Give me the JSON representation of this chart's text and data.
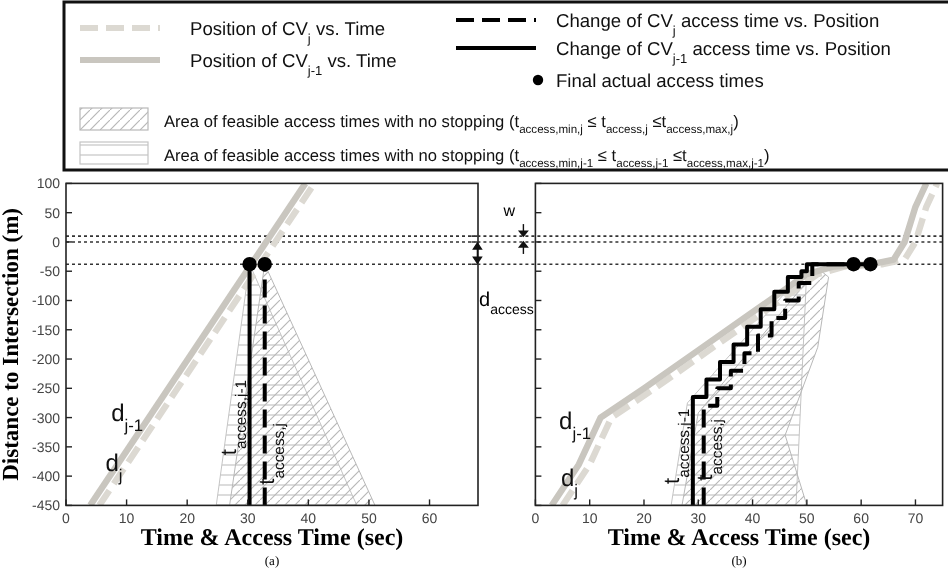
{
  "chart_data": [
    {
      "type": "line",
      "xlabel": "Time & Access Time (sec)",
      "ylabel": "Distance to Intersection (m)",
      "xlim": [
        0,
        68
      ],
      "xticks": [
        0,
        10,
        20,
        30,
        40,
        50,
        60
      ],
      "ylim": [
        -450,
        100
      ],
      "yticks": [
        100,
        50,
        0,
        -50,
        -100,
        -150,
        -200,
        -250,
        -300,
        -350,
        -400,
        -450
      ],
      "legend": "top",
      "ref_lines": [
        {
          "axis": "y",
          "value": 10,
          "line_style": "dotted"
        },
        {
          "axis": "y",
          "value": 0,
          "line_style": "dotted"
        },
        {
          "axis": "y",
          "value": -38,
          "line_style": "dotted"
        }
      ],
      "series": [
        {
          "name": "Position of CV$_{j}$ vs. Time",
          "color": "#dcd9d2",
          "line_style": "dashed",
          "x": [
            5.5,
            41
          ],
          "values": [
            -450,
            100
          ]
        },
        {
          "name": "Position of CV$_{j-1}$ vs. Time",
          "color": "#c9c6bf",
          "line_style": "solid",
          "x": [
            4,
            39.5
          ],
          "values": [
            -450,
            100
          ]
        },
        {
          "name": "Change of CV$_{j}$ access time vs. Position",
          "color": "#000000",
          "line_style": "dashed",
          "x": [
            32.8,
            32.8
          ],
          "values": [
            -450,
            -38
          ]
        },
        {
          "name": "Change of CV$_{j-1}$ access time vs. Position",
          "color": "#000000",
          "line_style": "solid",
          "x": [
            30.3,
            30.3
          ],
          "values": [
            -450,
            -38
          ]
        },
        {
          "name": "Final actual access times",
          "type": "scatter",
          "marker": "circle",
          "color": "#000000",
          "x": [
            30.3,
            32.8
          ],
          "values": [
            -38,
            -38
          ]
        },
        {
          "name": "Area of feasible access times with no stopping (t$_{access,min,j}$ ≤ t$_{access,j}$ ≤t$_{access,max,j}$)",
          "type": "area",
          "color": "#b8b8b8",
          "x": [
            27,
            32.8,
            51
          ],
          "values": [
            -450,
            -38,
            -450
          ]
        },
        {
          "name": "Area of feasible access times with no stopping (t$_{access,min,j-1}$ ≤ t$_{access,j-1}$ ≤t$_{access,max,j-1}$)",
          "type": "area",
          "color": "#c4c4c4",
          "x": [
            24.8,
            30.3,
            48
          ],
          "values": [
            -450,
            -38,
            -450
          ]
        }
      ],
      "annotations": [
        {
          "text": "d$_{j-1}$",
          "x": 13.4,
          "y": -305
        },
        {
          "text": "d$_{j}$",
          "x": 10,
          "y": -392
        },
        {
          "text": "t$_{access,j-1}$",
          "x": 28.1,
          "y": -300
        },
        {
          "text": "t$_{access,j}$",
          "x": 34.4,
          "y": -362
        },
        "(a)"
      ]
    },
    {
      "type": "line",
      "xlabel": "Time & Access Time (sec)",
      "xlim": [
        0,
        75
      ],
      "xticks": [
        0,
        10,
        20,
        30,
        40,
        50,
        60,
        70
      ],
      "ylim": [
        -450,
        100
      ],
      "yticks": [
        100,
        50,
        0,
        -50,
        -100,
        -150,
        -200,
        -250,
        -300,
        -350,
        -400,
        -450
      ],
      "tick_labels": "x",
      "ref_lines": [
        {
          "axis": "y",
          "value": 10,
          "line_style": "dotted"
        },
        {
          "axis": "y",
          "value": 0,
          "line_style": "dotted"
        },
        {
          "axis": "y",
          "value": -38,
          "line_style": "dotted"
        }
      ],
      "series": [
        {
          "color": "#dcd9d2",
          "line_style": "dashed",
          "x": [
            5,
            10,
            14,
            22,
            32,
            42,
            52,
            57,
            64,
            68,
            70,
            72,
            74
          ],
          "values": [
            -450,
            -380,
            -300,
            -250,
            -185,
            -120,
            -55,
            -42,
            -38,
            -30,
            0,
            60,
            100
          ]
        },
        {
          "color": "#c9c6bf",
          "line_style": "solid",
          "x": [
            3,
            8,
            12,
            20,
            30,
            40,
            50,
            55,
            62,
            66,
            68,
            70,
            72
          ],
          "values": [
            -450,
            -380,
            -300,
            -250,
            -185,
            -120,
            -55,
            -42,
            -38,
            -30,
            0,
            60,
            100
          ]
        },
        {
          "color": "#000000",
          "line_style": "dashed",
          "x": [
            31,
            31,
            33.5,
            33.5,
            36,
            36,
            38.5,
            38.5,
            41,
            41,
            43.5,
            43.5,
            46,
            46,
            48.5,
            48.5,
            51,
            51,
            61.7
          ],
          "values": [
            -450,
            -280,
            -280,
            -250,
            -250,
            -220,
            -220,
            -190,
            -190,
            -160,
            -160,
            -130,
            -130,
            -100,
            -100,
            -70,
            -70,
            -38,
            -38
          ]
        },
        {
          "color": "#000000",
          "line_style": "solid",
          "x": [
            29,
            29,
            31.5,
            31.5,
            34,
            34,
            36.5,
            36.5,
            39,
            39,
            41.5,
            41.5,
            44,
            44,
            46.5,
            46.5,
            49,
            49,
            50,
            50,
            58.6
          ],
          "values": [
            -450,
            -265,
            -265,
            -235,
            -235,
            -205,
            -205,
            -175,
            -175,
            -145,
            -145,
            -115,
            -115,
            -85,
            -85,
            -60,
            -60,
            -50,
            -50,
            -38,
            -38
          ]
        },
        {
          "type": "scatter",
          "marker": "circle",
          "color": "#000000",
          "x": [
            58.6,
            61.7
          ],
          "values": [
            -38,
            -38
          ]
        },
        {
          "type": "area",
          "color": "#b8b8b8",
          "x": [
            27,
            30,
            52,
            54,
            52,
            46,
            50
          ],
          "values": [
            -450,
            -292,
            -45,
            -60,
            -180,
            -330,
            -450
          ]
        },
        {
          "type": "area",
          "color": "#c4c4c4",
          "x": [
            25,
            28,
            50,
            48
          ],
          "values": [
            -450,
            -275,
            -45,
            -450
          ]
        }
      ],
      "annotations": [
        {
          "text": "d$_{j-1}$",
          "x": 11,
          "y": -320
        },
        {
          "text": "d$_{j}$",
          "x": 8.6,
          "y": -417
        },
        {
          "text": "t$_{access,j-1}$",
          "x": 26.5,
          "y": -349
        },
        {
          "text": "t$_{access,j}$",
          "x": 32.5,
          "y": -355
        },
        "w",
        "d$_{access}$",
        "(b)"
      ]
    }
  ]
}
